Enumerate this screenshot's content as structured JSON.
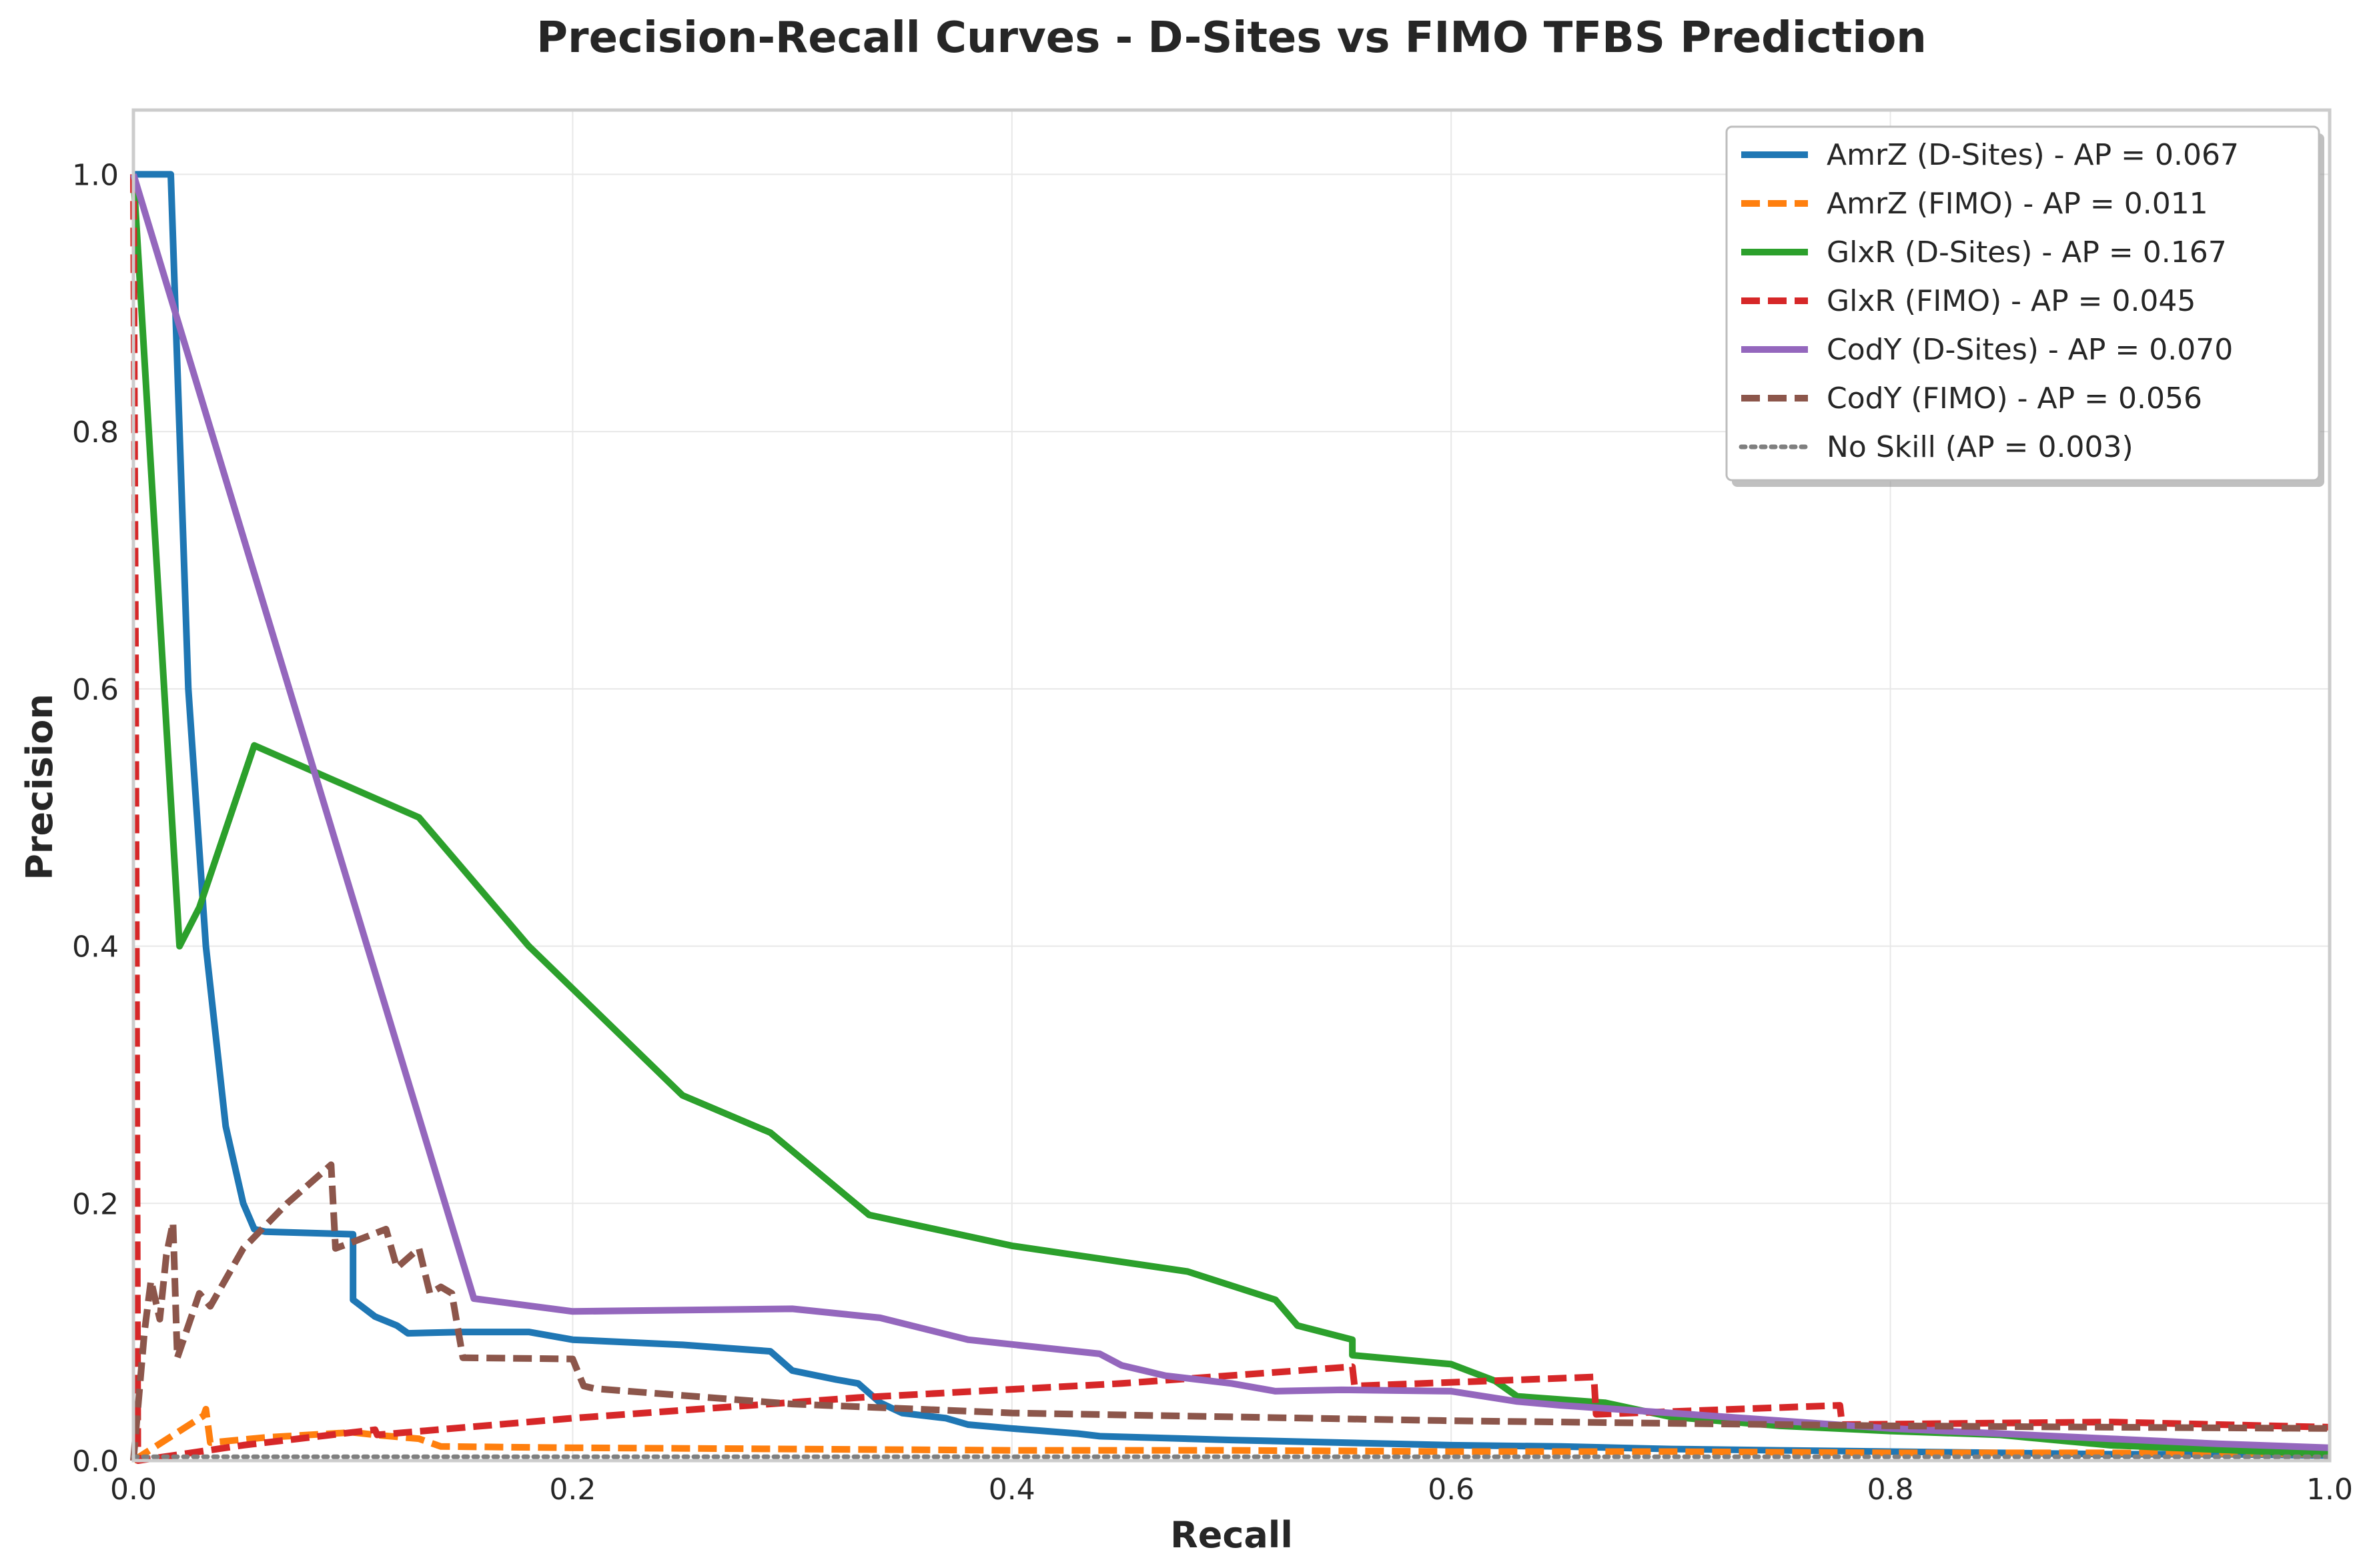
{
  "chart_data": {
    "type": "line",
    "title": "Precision-Recall Curves - D-Sites vs FIMO TFBS Prediction",
    "xlabel": "Recall",
    "ylabel": "Precision",
    "xlim": [
      0,
      1
    ],
    "ylim": [
      0,
      1.05
    ],
    "xticks": [
      0.0,
      0.2,
      0.4,
      0.6,
      0.8,
      1.0
    ],
    "yticks": [
      0.0,
      0.2,
      0.4,
      0.6,
      0.8,
      1.0
    ],
    "grid": true,
    "legend_position": "top-right",
    "series": [
      {
        "name": "AmrZ (D-Sites) - AP = 0.067",
        "color": "#1f77b4",
        "style": "solid",
        "x": [
          0,
          0.017,
          0.025,
          0.033,
          0.042,
          0.05,
          0.055,
          0.06,
          0.1,
          0.1,
          0.11,
          0.12,
          0.125,
          0.15,
          0.18,
          0.2,
          0.25,
          0.29,
          0.3,
          0.32,
          0.33,
          0.34,
          0.35,
          0.37,
          0.38,
          0.4,
          0.43,
          0.44,
          0.5,
          0.55,
          0.6,
          0.65,
          0.7,
          0.75,
          0.8,
          0.85,
          0.9,
          0.95,
          1.0
        ],
        "y": [
          1.0,
          1.0,
          0.6,
          0.4,
          0.26,
          0.2,
          0.18,
          0.178,
          0.176,
          0.125,
          0.112,
          0.105,
          0.099,
          0.1,
          0.1,
          0.094,
          0.09,
          0.085,
          0.07,
          0.063,
          0.06,
          0.045,
          0.037,
          0.033,
          0.028,
          0.025,
          0.021,
          0.019,
          0.016,
          0.014,
          0.012,
          0.011,
          0.009,
          0.008,
          0.007,
          0.006,
          0.005,
          0.005,
          0.004
        ]
      },
      {
        "name": "AmrZ (FIMO) - AP = 0.011",
        "color": "#ff7f0e",
        "style": "dashed",
        "x": [
          0,
          0.032,
          0.033,
          0.035,
          0.06,
          0.1,
          0.11,
          0.13,
          0.14,
          0.2,
          0.3,
          0.4,
          0.5,
          0.6,
          0.7,
          0.8,
          0.9,
          1.0
        ],
        "y": [
          0.0,
          0.035,
          0.04,
          0.014,
          0.018,
          0.022,
          0.02,
          0.017,
          0.011,
          0.01,
          0.009,
          0.008,
          0.008,
          0.007,
          0.007,
          0.006,
          0.006,
          0.005
        ]
      },
      {
        "name": "GlxR (D-Sites) - AP = 0.167",
        "color": "#2ca02c",
        "style": "solid",
        "x": [
          0,
          0.021,
          0.03,
          0.055,
          0.13,
          0.18,
          0.25,
          0.29,
          0.335,
          0.4,
          0.48,
          0.52,
          0.53,
          0.555,
          0.555,
          0.6,
          0.62,
          0.63,
          0.67,
          0.7,
          0.75,
          0.8,
          0.85,
          0.9,
          1.0
        ],
        "y": [
          1.0,
          0.4,
          0.43,
          0.556,
          0.5,
          0.4,
          0.284,
          0.255,
          0.191,
          0.167,
          0.147,
          0.125,
          0.105,
          0.094,
          0.082,
          0.075,
          0.062,
          0.05,
          0.045,
          0.034,
          0.027,
          0.023,
          0.02,
          0.012,
          0.005
        ]
      },
      {
        "name": "GlxR (FIMO) - AP = 0.045",
        "color": "#d62728",
        "style": "dashed",
        "x": [
          0,
          0.001,
          0.002,
          0.05,
          0.11,
          0.111,
          0.2,
          0.33,
          0.45,
          0.555,
          0.556,
          0.665,
          0.666,
          0.777,
          0.778,
          0.9,
          1.0
        ],
        "y": [
          1.0,
          0.6,
          0.0,
          0.012,
          0.024,
          0.02,
          0.033,
          0.049,
          0.06,
          0.073,
          0.058,
          0.065,
          0.036,
          0.043,
          0.028,
          0.03,
          0.026
        ]
      },
      {
        "name": "CodY (D-Sites) - AP = 0.070",
        "color": "#9467bd",
        "style": "solid",
        "x": [
          0,
          0.155,
          0.2,
          0.3,
          0.34,
          0.38,
          0.44,
          0.45,
          0.47,
          0.5,
          0.52,
          0.55,
          0.6,
          0.63,
          0.65,
          0.7,
          0.75,
          0.8,
          0.85,
          0.9,
          0.95,
          1.0
        ],
        "y": [
          1.0,
          0.126,
          0.116,
          0.118,
          0.111,
          0.094,
          0.083,
          0.074,
          0.066,
          0.06,
          0.054,
          0.055,
          0.054,
          0.046,
          0.043,
          0.037,
          0.031,
          0.025,
          0.021,
          0.017,
          0.013,
          0.01
        ]
      },
      {
        "name": "CodY (FIMO) - AP = 0.056",
        "color": "#8c564b",
        "style": "dashed",
        "x": [
          0,
          0.005,
          0.008,
          0.012,
          0.015,
          0.018,
          0.02,
          0.03,
          0.035,
          0.05,
          0.07,
          0.09,
          0.092,
          0.1,
          0.115,
          0.12,
          0.13,
          0.135,
          0.14,
          0.145,
          0.15,
          0.2,
          0.205,
          0.21,
          0.3,
          0.4,
          0.5,
          0.6,
          0.7,
          0.8,
          0.9,
          1.0
        ],
        "y": [
          0.0,
          0.1,
          0.14,
          0.11,
          0.16,
          0.185,
          0.08,
          0.13,
          0.12,
          0.165,
          0.2,
          0.23,
          0.165,
          0.17,
          0.18,
          0.15,
          0.165,
          0.13,
          0.135,
          0.13,
          0.08,
          0.079,
          0.058,
          0.056,
          0.044,
          0.037,
          0.034,
          0.031,
          0.029,
          0.027,
          0.026,
          0.025
        ]
      },
      {
        "name": "No Skill (AP = 0.003)",
        "color": "#7f7f7f",
        "style": "dotted",
        "x": [
          0,
          1
        ],
        "y": [
          0.003,
          0.003
        ]
      }
    ]
  }
}
